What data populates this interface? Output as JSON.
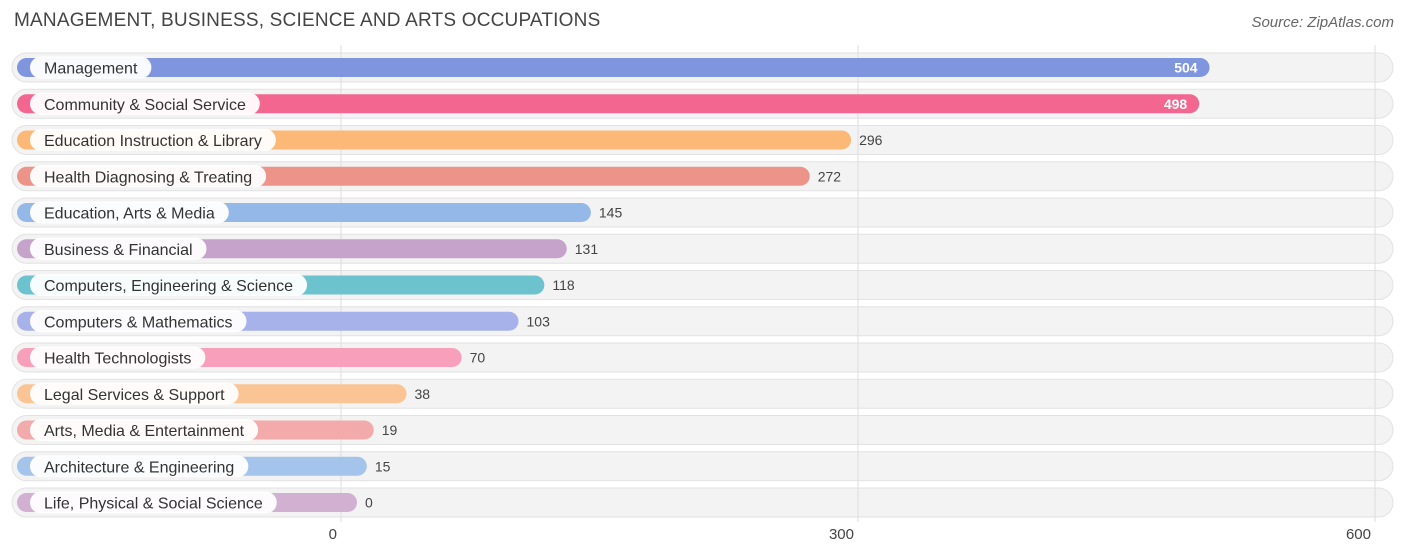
{
  "title": "MANAGEMENT, BUSINESS, SCIENCE AND ARTS OCCUPATIONS",
  "source": "Source: ZipAtlas.com",
  "chart_data": {
    "type": "bar",
    "orientation": "horizontal",
    "title": "MANAGEMENT, BUSINESS, SCIENCE AND ARTS OCCUPATIONS",
    "xlabel": "",
    "ylabel": "",
    "xlim": [
      0,
      600
    ],
    "x_ticks": [
      "0",
      "300",
      "600"
    ],
    "grid": true,
    "categories": [
      "Management",
      "Community & Social Service",
      "Education Instruction & Library",
      "Health Diagnosing & Treating",
      "Education, Arts & Media",
      "Business & Financial",
      "Computers, Engineering & Science",
      "Computers & Mathematics",
      "Health Technologists",
      "Legal Services & Support",
      "Arts, Media & Entertainment",
      "Architecture & Engineering",
      "Life, Physical & Social Science"
    ],
    "values": [
      504,
      498,
      296,
      272,
      145,
      131,
      118,
      103,
      70,
      38,
      19,
      15,
      0
    ],
    "value_labels": [
      "504",
      "498",
      "296",
      "272",
      "145",
      "131",
      "118",
      "103",
      "70",
      "38",
      "19",
      "15",
      "0"
    ],
    "colors": [
      "#7f96de",
      "#f2668f",
      "#fbb877",
      "#ec9489",
      "#94b8e8",
      "#c6a3cb",
      "#6cc3ce",
      "#a8b2ea",
      "#f8a0bb",
      "#fbc495",
      "#f3aaaa",
      "#a5c4ec",
      "#d1b0d2"
    ]
  }
}
